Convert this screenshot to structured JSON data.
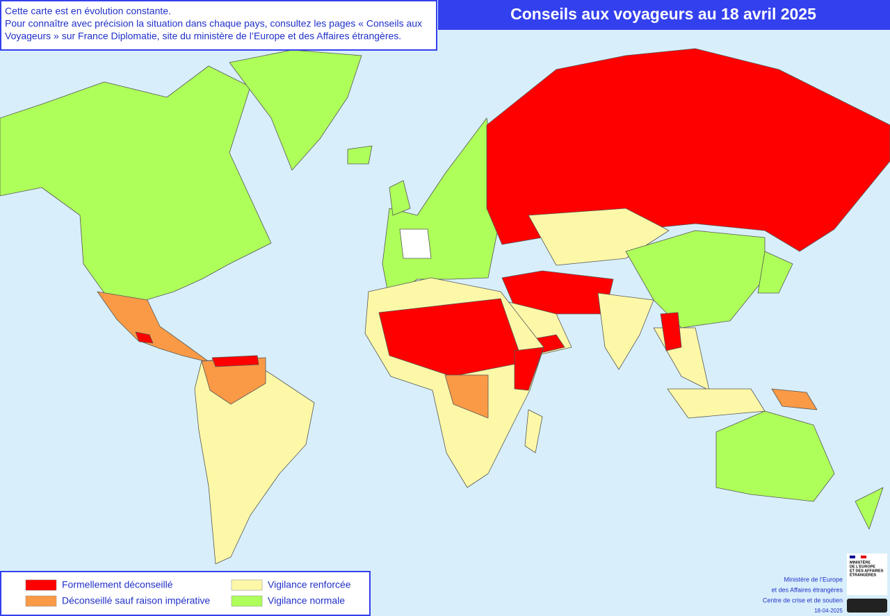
{
  "title": "Conseils aux voyageurs au 18 avril 2025",
  "note": [
    "Cette carte est en évolution constante.",
    "Pour connaître avec précision la situation dans chaque pays, consultez les pages « Conseils aux",
    "Voyageurs » sur France Diplomatie, site du ministère de l’Europe et des Affaires étrangères."
  ],
  "legend": [
    {
      "label": "Formellement déconseillé",
      "color": "#ff0000"
    },
    {
      "label": "Déconseillé sauf raison impérative",
      "color": "#fa9a46"
    },
    {
      "label": "Vigilance renforcée",
      "color": "#fdf8a8"
    },
    {
      "label": "Vigilance normale",
      "color": "#aeff5a"
    }
  ],
  "credits": [
    "Ministère de l’Europe",
    "et des Affaires étrangères",
    "Centre de crise et de soutien",
    "18-04-2025"
  ],
  "logo": [
    "MINISTÈRE",
    "DE L’EUROPE",
    "ET DES AFFAIRES",
    "ÉTRANGÈRES"
  ]
}
